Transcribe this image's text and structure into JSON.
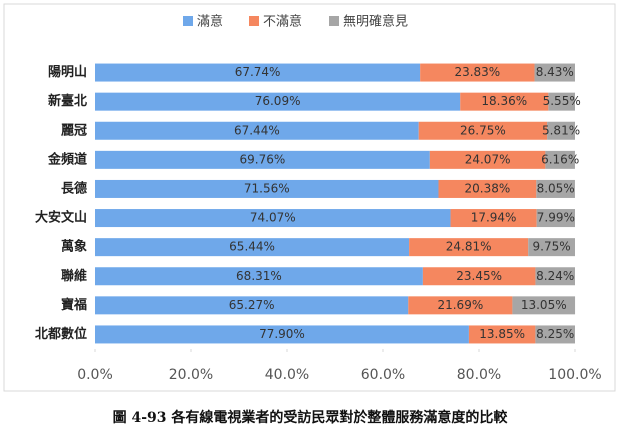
{
  "chart_data": {
    "type": "bar",
    "orientation": "horizontal",
    "stacked": true,
    "caption": "圖 4-93 各有線電視業者的受訪民眾對於整體服務滿意度的比較",
    "categories": [
      "陽明山",
      "新臺北",
      "麗冠",
      "金頻道",
      "長德",
      "大安文山",
      "萬象",
      "聯維",
      "寶福",
      "北都數位"
    ],
    "series": [
      {
        "name": "滿意",
        "color": "#6fa8ea",
        "values": [
          67.74,
          76.09,
          67.44,
          69.76,
          71.56,
          74.07,
          65.44,
          68.31,
          65.27,
          77.9
        ],
        "value_labels": [
          "67.74%",
          "76.09%",
          "67.44%",
          "69.76%",
          "71.56%",
          "74.07%",
          "65.44%",
          "68.31%",
          "65.27%",
          "77.90%"
        ]
      },
      {
        "name": "不滿意",
        "color": "#f5875f",
        "values": [
          23.83,
          18.36,
          26.75,
          24.07,
          20.38,
          17.94,
          24.81,
          23.45,
          21.69,
          13.85
        ],
        "value_labels": [
          "23.83%",
          "18.36%",
          "26.75%",
          "24.07%",
          "20.38%",
          "17.94%",
          "24.81%",
          "23.45%",
          "21.69%",
          "13.85%"
        ]
      },
      {
        "name": "無明確意見",
        "color": "#a6a6a6",
        "values": [
          8.43,
          5.55,
          5.81,
          6.16,
          8.05,
          7.99,
          9.75,
          8.24,
          13.05,
          8.25
        ],
        "value_labels": [
          "8.43%",
          "5.55%",
          "5.81%",
          "6.16%",
          "8.05%",
          "7.99%",
          "9.75%",
          "8.24%",
          "13.05%",
          "8.25%"
        ]
      }
    ],
    "xlim": [
      0,
      100
    ],
    "xticks": [
      {
        "value": 0,
        "label": "0.0%"
      },
      {
        "value": 20,
        "label": "20.0%"
      },
      {
        "value": 40,
        "label": "40.0%"
      },
      {
        "value": 60,
        "label": "60.0%"
      },
      {
        "value": 80,
        "label": "80.0%"
      },
      {
        "value": 100,
        "label": "100.0%"
      }
    ],
    "legend": "top"
  }
}
